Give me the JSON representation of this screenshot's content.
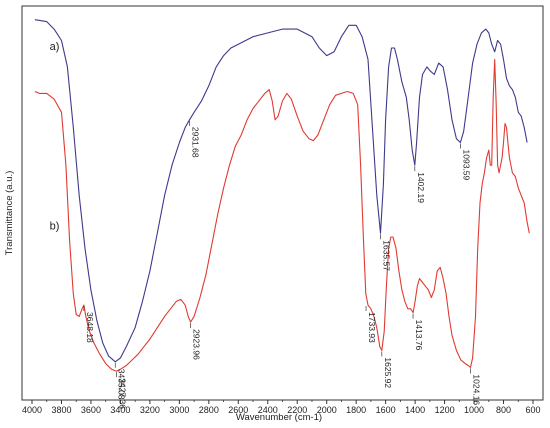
{
  "chart_data": {
    "type": "line",
    "xlabel": "Wavenumber (cm-1)",
    "ylabel": "Transmittance (a.u.)",
    "xlim": [
      4000,
      600
    ],
    "x_reversed": true,
    "x_ticks": [
      4000,
      3800,
      3600,
      3400,
      3200,
      3000,
      2800,
      2600,
      2400,
      2200,
      2000,
      1800,
      1600,
      1400,
      1200,
      1000,
      800,
      600
    ],
    "ylim": [
      0,
      1
    ],
    "y_tick_labels_shown": false,
    "grid": false,
    "legend": "none",
    "series": [
      {
        "name": "a)",
        "color": "#3d3a8c",
        "label_anchor": [
          3880,
          0.905
        ],
        "points": [
          [
            3980,
            0.985
          ],
          [
            3900,
            0.98
          ],
          [
            3850,
            0.96
          ],
          [
            3800,
            0.93
          ],
          [
            3760,
            0.86
          ],
          [
            3720,
            0.7
          ],
          [
            3680,
            0.52
          ],
          [
            3640,
            0.38
          ],
          [
            3600,
            0.27
          ],
          [
            3560,
            0.19
          ],
          [
            3520,
            0.13
          ],
          [
            3480,
            0.095
          ],
          [
            3435,
            0.08
          ],
          [
            3400,
            0.09
          ],
          [
            3360,
            0.12
          ],
          [
            3300,
            0.17
          ],
          [
            3250,
            0.24
          ],
          [
            3200,
            0.32
          ],
          [
            3150,
            0.42
          ],
          [
            3100,
            0.52
          ],
          [
            3050,
            0.6
          ],
          [
            3000,
            0.66
          ],
          [
            2960,
            0.7
          ],
          [
            2931,
            0.72
          ],
          [
            2900,
            0.74
          ],
          [
            2850,
            0.77
          ],
          [
            2800,
            0.81
          ],
          [
            2750,
            0.86
          ],
          [
            2700,
            0.89
          ],
          [
            2650,
            0.91
          ],
          [
            2600,
            0.92
          ],
          [
            2500,
            0.94
          ],
          [
            2400,
            0.95
          ],
          [
            2300,
            0.96
          ],
          [
            2200,
            0.96
          ],
          [
            2100,
            0.94
          ],
          [
            2050,
            0.91
          ],
          [
            2000,
            0.89
          ],
          [
            1950,
            0.9
          ],
          [
            1900,
            0.94
          ],
          [
            1850,
            0.97
          ],
          [
            1800,
            0.97
          ],
          [
            1760,
            0.94
          ],
          [
            1720,
            0.88
          ],
          [
            1690,
            0.7
          ],
          [
            1660,
            0.52
          ],
          [
            1635,
            0.42
          ],
          [
            1615,
            0.55
          ],
          [
            1600,
            0.72
          ],
          [
            1580,
            0.86
          ],
          [
            1560,
            0.91
          ],
          [
            1540,
            0.91
          ],
          [
            1520,
            0.88
          ],
          [
            1490,
            0.82
          ],
          [
            1460,
            0.78
          ],
          [
            1440,
            0.72
          ],
          [
            1420,
            0.64
          ],
          [
            1402,
            0.6
          ],
          [
            1390,
            0.66
          ],
          [
            1370,
            0.78
          ],
          [
            1350,
            0.84
          ],
          [
            1320,
            0.86
          ],
          [
            1300,
            0.85
          ],
          [
            1270,
            0.84
          ],
          [
            1240,
            0.87
          ],
          [
            1210,
            0.86
          ],
          [
            1180,
            0.8
          ],
          [
            1150,
            0.72
          ],
          [
            1120,
            0.67
          ],
          [
            1093,
            0.66
          ],
          [
            1070,
            0.69
          ],
          [
            1040,
            0.78
          ],
          [
            1010,
            0.87
          ],
          [
            980,
            0.92
          ],
          [
            950,
            0.95
          ],
          [
            920,
            0.96
          ],
          [
            900,
            0.95
          ],
          [
            880,
            0.92
          ],
          [
            860,
            0.9
          ],
          [
            840,
            0.93
          ],
          [
            820,
            0.92
          ],
          [
            800,
            0.88
          ],
          [
            780,
            0.83
          ],
          [
            760,
            0.81
          ],
          [
            740,
            0.8
          ],
          [
            720,
            0.78
          ],
          [
            700,
            0.74
          ],
          [
            680,
            0.73
          ],
          [
            660,
            0.7
          ],
          [
            640,
            0.66
          ]
        ]
      },
      {
        "name": "b)",
        "color": "#e03a32",
        "label_anchor": [
          3880,
          0.43
        ],
        "points": [
          [
            3980,
            0.795
          ],
          [
            3950,
            0.79
          ],
          [
            3900,
            0.79
          ],
          [
            3850,
            0.775
          ],
          [
            3800,
            0.74
          ],
          [
            3770,
            0.6
          ],
          [
            3745,
            0.4
          ],
          [
            3720,
            0.26
          ],
          [
            3700,
            0.205
          ],
          [
            3680,
            0.2
          ],
          [
            3660,
            0.22
          ],
          [
            3648,
            0.23
          ],
          [
            3635,
            0.2
          ],
          [
            3610,
            0.16
          ],
          [
            3580,
            0.13
          ],
          [
            3540,
            0.1
          ],
          [
            3500,
            0.075
          ],
          [
            3460,
            0.06
          ],
          [
            3427,
            0.055
          ],
          [
            3400,
            0.06
          ],
          [
            3360,
            0.07
          ],
          [
            3320,
            0.085
          ],
          [
            3280,
            0.1
          ],
          [
            3240,
            0.12
          ],
          [
            3200,
            0.14
          ],
          [
            3150,
            0.17
          ],
          [
            3100,
            0.2
          ],
          [
            3060,
            0.22
          ],
          [
            3020,
            0.24
          ],
          [
            2990,
            0.245
          ],
          [
            2960,
            0.23
          ],
          [
            2940,
            0.2
          ],
          [
            2924,
            0.185
          ],
          [
            2900,
            0.2
          ],
          [
            2860,
            0.25
          ],
          [
            2820,
            0.31
          ],
          [
            2780,
            0.39
          ],
          [
            2740,
            0.47
          ],
          [
            2700,
            0.54
          ],
          [
            2660,
            0.6
          ],
          [
            2620,
            0.65
          ],
          [
            2580,
            0.68
          ],
          [
            2540,
            0.72
          ],
          [
            2500,
            0.75
          ],
          [
            2460,
            0.77
          ],
          [
            2420,
            0.79
          ],
          [
            2390,
            0.8
          ],
          [
            2370,
            0.77
          ],
          [
            2350,
            0.72
          ],
          [
            2330,
            0.73
          ],
          [
            2300,
            0.77
          ],
          [
            2270,
            0.79
          ],
          [
            2240,
            0.775
          ],
          [
            2200,
            0.73
          ],
          [
            2160,
            0.69
          ],
          [
            2120,
            0.67
          ],
          [
            2090,
            0.665
          ],
          [
            2060,
            0.68
          ],
          [
            2020,
            0.72
          ],
          [
            1980,
            0.76
          ],
          [
            1940,
            0.785
          ],
          [
            1900,
            0.79
          ],
          [
            1860,
            0.795
          ],
          [
            1820,
            0.79
          ],
          [
            1790,
            0.76
          ],
          [
            1770,
            0.6
          ],
          [
            1750,
            0.4
          ],
          [
            1735,
            0.26
          ],
          [
            1720,
            0.23
          ],
          [
            1700,
            0.22
          ],
          [
            1680,
            0.2
          ],
          [
            1660,
            0.17
          ],
          [
            1640,
            0.12
          ],
          [
            1626,
            0.11
          ],
          [
            1610,
            0.16
          ],
          [
            1595,
            0.28
          ],
          [
            1580,
            0.38
          ],
          [
            1565,
            0.41
          ],
          [
            1550,
            0.41
          ],
          [
            1530,
            0.38
          ],
          [
            1510,
            0.32
          ],
          [
            1490,
            0.27
          ],
          [
            1470,
            0.24
          ],
          [
            1450,
            0.22
          ],
          [
            1430,
            0.22
          ],
          [
            1414,
            0.21
          ],
          [
            1400,
            0.24
          ],
          [
            1385,
            0.28
          ],
          [
            1370,
            0.3
          ],
          [
            1350,
            0.29
          ],
          [
            1330,
            0.28
          ],
          [
            1310,
            0.27
          ],
          [
            1290,
            0.25
          ],
          [
            1270,
            0.27
          ],
          [
            1250,
            0.32
          ],
          [
            1230,
            0.33
          ],
          [
            1210,
            0.3
          ],
          [
            1190,
            0.26
          ],
          [
            1170,
            0.2
          ],
          [
            1150,
            0.15
          ],
          [
            1120,
            0.11
          ],
          [
            1090,
            0.085
          ],
          [
            1060,
            0.075
          ],
          [
            1040,
            0.07
          ],
          [
            1024,
            0.065
          ],
          [
            1010,
            0.09
          ],
          [
            990,
            0.2
          ],
          [
            975,
            0.38
          ],
          [
            960,
            0.5
          ],
          [
            945,
            0.55
          ],
          [
            930,
            0.58
          ],
          [
            915,
            0.62
          ],
          [
            900,
            0.64
          ],
          [
            890,
            0.6
          ],
          [
            880,
            0.6
          ],
          [
            870,
            0.78
          ],
          [
            860,
            0.88
          ],
          [
            850,
            0.76
          ],
          [
            840,
            0.6
          ],
          [
            830,
            0.58
          ],
          [
            820,
            0.6
          ],
          [
            810,
            0.62
          ],
          [
            800,
            0.66
          ],
          [
            790,
            0.71
          ],
          [
            780,
            0.7
          ],
          [
            770,
            0.66
          ],
          [
            760,
            0.62
          ],
          [
            750,
            0.6
          ],
          [
            740,
            0.58
          ],
          [
            720,
            0.57
          ],
          [
            700,
            0.54
          ],
          [
            680,
            0.52
          ],
          [
            660,
            0.5
          ],
          [
            640,
            0.45
          ],
          [
            625,
            0.42
          ]
        ]
      }
    ],
    "annotations": [
      {
        "series": "a)",
        "x": 2931,
        "y": 0.72,
        "text": "2931.68"
      },
      {
        "series": "a)",
        "x": 1635,
        "y": 0.42,
        "text": "1635.57"
      },
      {
        "series": "a)",
        "x": 1402,
        "y": 0.6,
        "text": "1402.19"
      },
      {
        "series": "a)",
        "x": 1093,
        "y": 0.66,
        "text": "1093.59"
      },
      {
        "series": "a)",
        "x": 3435,
        "y": 0.08,
        "text": "3435.08"
      },
      {
        "series": "b)",
        "x": 3648,
        "y": 0.23,
        "text": "3648.18"
      },
      {
        "series": "b)",
        "x": 3427,
        "y": 0.055,
        "text": "3427.36"
      },
      {
        "series": "b)",
        "x": 2924,
        "y": 0.185,
        "text": "2923.96"
      },
      {
        "series": "b)",
        "x": 1733,
        "y": 0.23,
        "text": "1733.93"
      },
      {
        "series": "b)",
        "x": 1626,
        "y": 0.11,
        "text": "1625.92"
      },
      {
        "series": "b)",
        "x": 1414,
        "y": 0.21,
        "text": "1413.76"
      },
      {
        "series": "b)",
        "x": 1024,
        "y": 0.065,
        "text": "1024.16"
      }
    ]
  }
}
